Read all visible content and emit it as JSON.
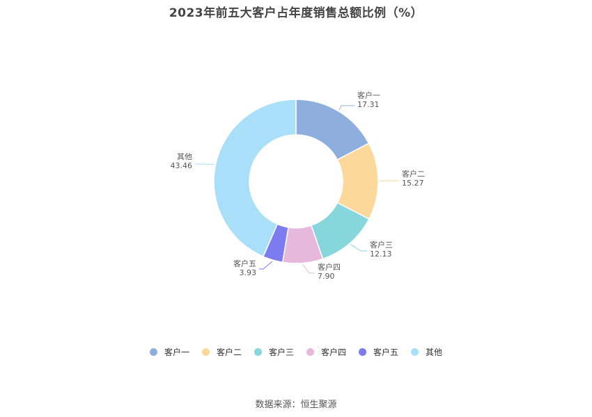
{
  "chart_data": {
    "type": "pie",
    "title": "2023年前五大客户占年度销售总额比例（%）",
    "donut": true,
    "slices": [
      {
        "name": "客户一",
        "value": 17.31,
        "label": "17.31",
        "color": "#8eafdd"
      },
      {
        "name": "客户二",
        "value": 15.27,
        "label": "15.27",
        "color": "#fdd89b"
      },
      {
        "name": "客户三",
        "value": 12.13,
        "label": "12.13",
        "color": "#86d6db"
      },
      {
        "name": "客户四",
        "value": 7.9,
        "label": "7.90",
        "color": "#e6b9dc"
      },
      {
        "name": "客户五",
        "value": 3.93,
        "label": "3.93",
        "color": "#7d7bf0"
      },
      {
        "name": "其他",
        "value": 43.46,
        "label": "43.46",
        "color": "#a9dff9"
      }
    ],
    "legend_position": "bottom"
  },
  "source": "数据来源：恒生聚源"
}
